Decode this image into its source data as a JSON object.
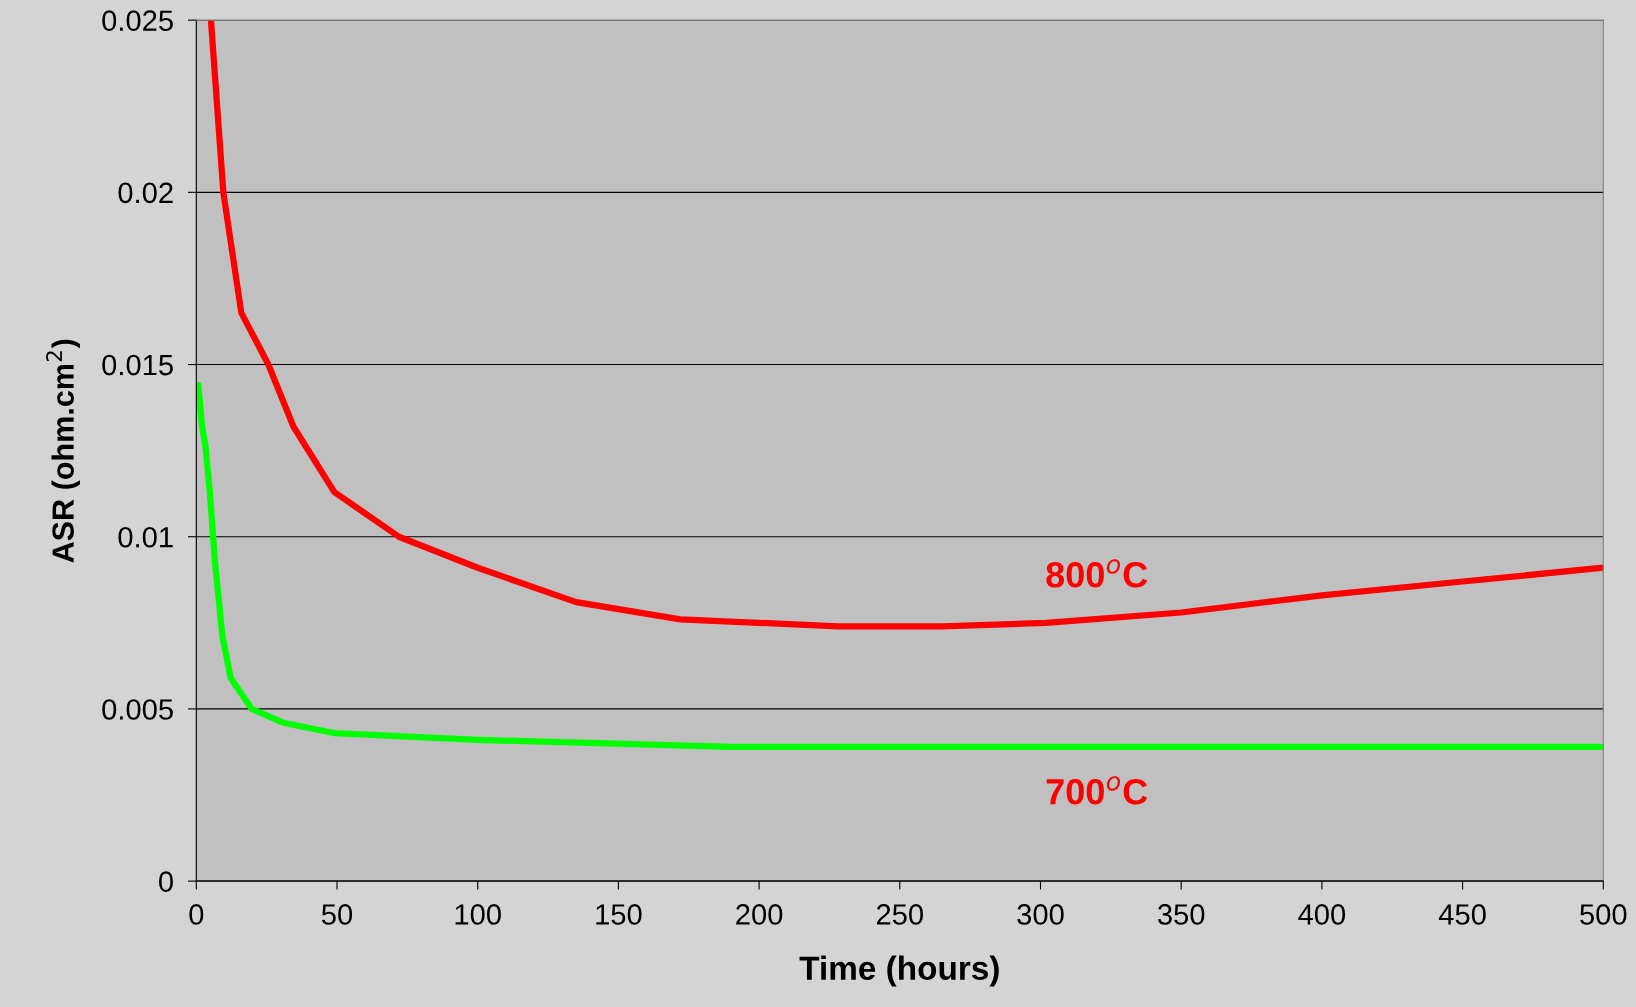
{
  "chart_data": {
    "type": "line",
    "xlabel": "Time (hours)",
    "ylabel": "ASR (ohm.cm$^{2}$)",
    "xlim": [
      0,
      500
    ],
    "ylim": [
      0,
      0.025
    ],
    "xticks": [
      0,
      50,
      100,
      150,
      200,
      250,
      300,
      350,
      400,
      450,
      500
    ],
    "yticks": [
      0,
      0.005,
      0.01,
      0.015,
      0.02,
      0.025
    ],
    "grid": "y",
    "legend": false,
    "marker": "none",
    "line_style": "solid",
    "series": [
      {
        "color": "#ff0000",
        "x": [
          5.2,
          9.6,
          16,
          25.6,
          34.5,
          49,
          72,
          100,
          135,
          172,
          228,
          265,
          302,
          350,
          400,
          450,
          500
        ],
        "values": [
          0.025,
          0.02,
          0.0165,
          0.015,
          0.0132,
          0.0113,
          0.01,
          0.0091,
          0.0081,
          0.0076,
          0.0074,
          0.0074,
          0.0075,
          0.0078,
          0.0083,
          0.0087,
          0.0091
        ]
      },
      {
        "color": "#00ff00",
        "x": [
          0.7,
          1.9,
          3.3,
          4.8,
          6.7,
          9.3,
          12.2,
          19.7,
          30.8,
          49,
          100,
          190,
          300,
          410,
          500
        ],
        "values": [
          0.0144,
          0.0133,
          0.0126,
          0.0113,
          0.0092,
          0.0071,
          0.0059,
          0.005,
          0.0046,
          0.0043,
          0.0041,
          0.0039,
          0.0039,
          0.0039,
          0.0039
        ]
      }
    ],
    "annotations": [
      "800$^{o}$C",
      "700$^{o}$C"
    ]
  }
}
